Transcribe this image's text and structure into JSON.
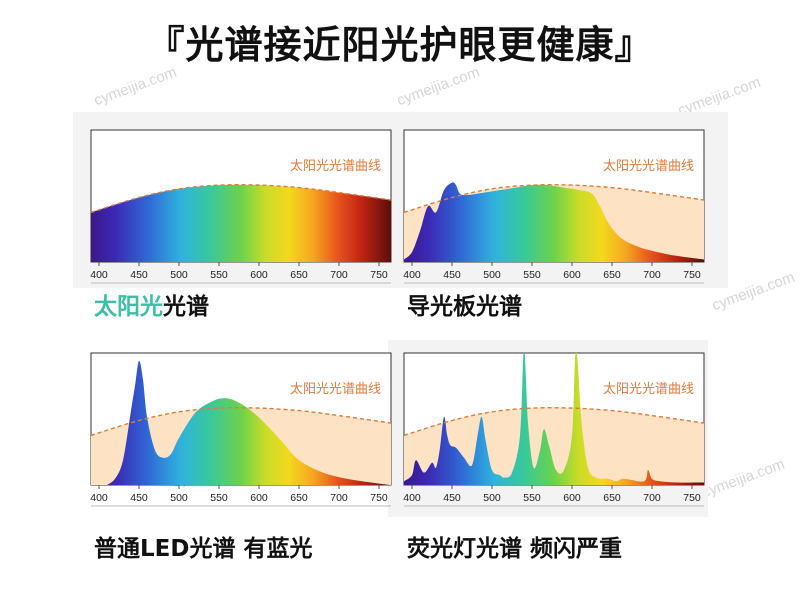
{
  "title": "『光谱接近阳光护眼更健康』",
  "watermark": "cymeijia.com",
  "accent_colors": {
    "sun_curve": "#e07a3a",
    "sun_fill": "#fde3c3",
    "caption_highlight": "#3dbfa5"
  },
  "chart_data": [
    {
      "type": "area",
      "legend_label": "太阳光光谱曲线",
      "caption": {
        "highlight": "太阳光",
        "rest": "光谱"
      },
      "xlim": [
        390,
        765
      ],
      "x_ticks": [
        400,
        450,
        500,
        550,
        600,
        650,
        700,
        750
      ],
      "ylim": [
        0,
        100
      ],
      "reference_curve": {
        "name": "太阳光光谱曲线",
        "x": [
          390,
          450,
          500,
          550,
          600,
          650,
          700,
          765
        ],
        "y": [
          40,
          52,
          59,
          62,
          62,
          60,
          56,
          50
        ]
      },
      "series": [
        {
          "x": [
            390,
            450,
            500,
            550,
            600,
            650,
            700,
            765
          ],
          "y": [
            40,
            52,
            59,
            62,
            62,
            60,
            56,
            50
          ]
        }
      ]
    },
    {
      "type": "area",
      "legend_label": "太阳光光谱曲线",
      "caption": {
        "highlight": "",
        "rest": "导光板光谱"
      },
      "xlim": [
        390,
        765
      ],
      "x_ticks": [
        400,
        450,
        500,
        550,
        600,
        650,
        700,
        750
      ],
      "ylim": [
        0,
        100
      ],
      "reference_curve": {
        "name": "太阳光光谱曲线",
        "x": [
          390,
          450,
          500,
          550,
          600,
          650,
          700,
          765
        ],
        "y": [
          40,
          52,
          59,
          62,
          62,
          60,
          56,
          50
        ]
      },
      "series": [
        {
          "x": [
            390,
            400,
            410,
            420,
            430,
            440,
            450,
            455,
            460,
            470,
            490,
            510,
            530,
            550,
            570,
            590,
            610,
            625,
            635,
            645,
            660,
            680,
            700,
            730,
            765
          ],
          "y": [
            2,
            8,
            25,
            45,
            40,
            58,
            64,
            62,
            55,
            54,
            56,
            58,
            60,
            62,
            62,
            60,
            58,
            55,
            45,
            32,
            20,
            13,
            9,
            5,
            2
          ]
        }
      ]
    },
    {
      "type": "area",
      "legend_label": "太阳光光谱曲线",
      "caption": {
        "highlight": "",
        "rest": "普通LED光谱 有蓝光"
      },
      "xlim": [
        390,
        765
      ],
      "x_ticks": [
        400,
        450,
        500,
        550,
        600,
        650,
        700,
        750
      ],
      "ylim": [
        0,
        100
      ],
      "reference_curve": {
        "name": "太阳光光谱曲线",
        "x": [
          390,
          450,
          500,
          550,
          600,
          650,
          700,
          765
        ],
        "y": [
          40,
          52,
          59,
          62,
          62,
          60,
          56,
          50
        ]
      },
      "series": [
        {
          "x": [
            410,
            420,
            430,
            440,
            445,
            450,
            455,
            460,
            470,
            480,
            490,
            500,
            520,
            540,
            555,
            570,
            590,
            610,
            630,
            650,
            680,
            710,
            740,
            765
          ],
          "y": [
            0,
            5,
            20,
            60,
            80,
            100,
            85,
            55,
            28,
            22,
            25,
            38,
            58,
            67,
            70,
            68,
            60,
            48,
            34,
            20,
            10,
            5,
            2,
            0
          ]
        }
      ]
    },
    {
      "type": "area",
      "legend_label": "太阳光光谱曲线",
      "caption": {
        "highlight": "",
        "rest": "荧光灯光谱 频闪严重"
      },
      "xlim": [
        390,
        765
      ],
      "x_ticks": [
        400,
        450,
        500,
        550,
        600,
        650,
        700,
        750
      ],
      "ylim": [
        0,
        100
      ],
      "reference_curve": {
        "name": "太阳光光谱曲线",
        "x": [
          390,
          450,
          500,
          550,
          600,
          650,
          700,
          765
        ],
        "y": [
          40,
          52,
          59,
          62,
          62,
          60,
          56,
          50
        ]
      },
      "series": [
        {
          "x": [
            390,
            400,
            405,
            415,
            425,
            430,
            435,
            440,
            444,
            448,
            455,
            465,
            475,
            482,
            487,
            492,
            500,
            510,
            515,
            525,
            535,
            540,
            545,
            552,
            560,
            565,
            572,
            580,
            590,
            600,
            605,
            612,
            620,
            630,
            645,
            655,
            665,
            690,
            695,
            700,
            710,
            730,
            765
          ],
          "y": [
            3,
            8,
            20,
            10,
            18,
            14,
            30,
            55,
            40,
            32,
            30,
            22,
            16,
            40,
            55,
            36,
            12,
            8,
            6,
            10,
            40,
            110,
            50,
            14,
            28,
            45,
            30,
            12,
            12,
            40,
            110,
            50,
            14,
            6,
            5,
            3,
            5,
            3,
            12,
            5,
            3,
            2,
            2
          ]
        }
      ]
    }
  ]
}
